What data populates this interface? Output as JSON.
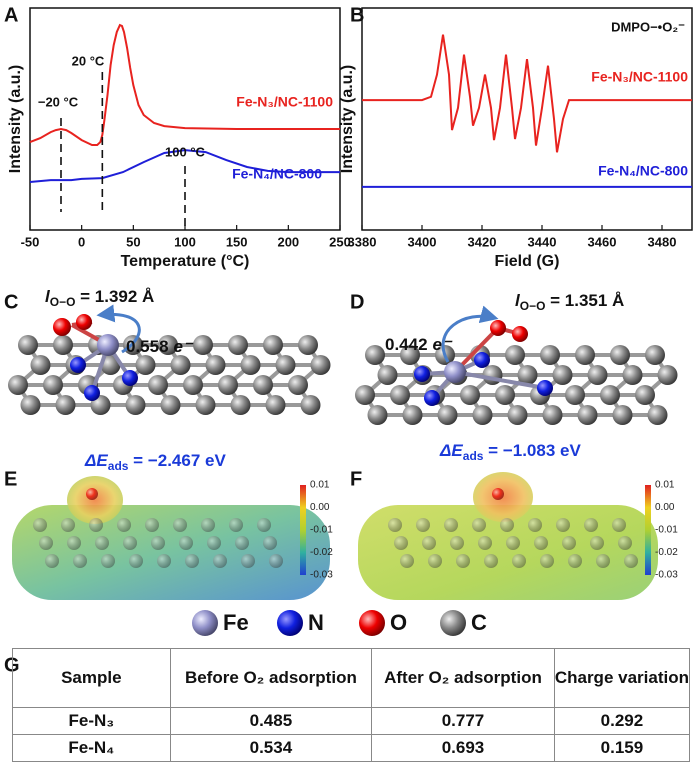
{
  "panel_labels": [
    "A",
    "B",
    "C",
    "D",
    "E",
    "F",
    "G"
  ],
  "chart_data": [
    {
      "type": "line",
      "y_label": "Intensity (a.u.)",
      "x_label": "Temperature (°C)",
      "xlim": [
        -50,
        250
      ],
      "xticks": [
        -50,
        0,
        50,
        100,
        150,
        200,
        250
      ],
      "ylim": [
        0,
        100
      ],
      "series": [
        {
          "name": "Fe-N₃/NC-1100",
          "color": "#e8231f",
          "x": [
            -50,
            -40,
            -30,
            -25,
            -20,
            -15,
            -10,
            0,
            10,
            15,
            18,
            20,
            22,
            25,
            28,
            31,
            34,
            37,
            39,
            41,
            44,
            47,
            50,
            55,
            60,
            70,
            80,
            100,
            150,
            200,
            250
          ],
          "values": [
            39.6,
            41.4,
            44.1,
            45,
            45.5,
            45,
            43.7,
            40.5,
            38.3,
            38.3,
            39.6,
            42.8,
            49.5,
            60.8,
            74.3,
            83.3,
            89.2,
            92.3,
            91.9,
            89.2,
            82,
            73,
            65.3,
            56.3,
            51.8,
            48.2,
            46.8,
            45.9,
            45.5,
            45.5,
            45.5
          ]
        },
        {
          "name": "Fe-N₄/NC-800",
          "color": "#1f1fd8",
          "x": [
            -50,
            -30,
            -10,
            0,
            20,
            40,
            60,
            80,
            100,
            120,
            140,
            160,
            180,
            200,
            250
          ],
          "values": [
            21.6,
            22.5,
            22.5,
            23,
            23.4,
            26.1,
            30.6,
            34.7,
            36,
            35.1,
            31.5,
            28.4,
            26.6,
            26.1,
            26.1
          ]
        }
      ],
      "annotations": [
        {
          "text": "−20 °C",
          "x": -20
        },
        {
          "text": "20 °C",
          "x": 20
        },
        {
          "text": "100 °C",
          "x": 100
        }
      ]
    },
    {
      "type": "line",
      "y_label": "Intensity (a.u.)",
      "x_label": "Field (G)",
      "xlim": [
        3380,
        3490
      ],
      "xticks": [
        3380,
        3400,
        3420,
        3440,
        3460,
        3480
      ],
      "ylim": [
        0,
        100
      ],
      "annotation": "DMPO−•O₂⁻",
      "series": [
        {
          "name": "Fe-N₃/NC-1100",
          "color": "#e8231f",
          "x": [
            3380,
            3400,
            3403,
            3405,
            3407,
            3409,
            3410,
            3412,
            3414,
            3416,
            3417,
            3419,
            3421,
            3423,
            3424,
            3426,
            3428,
            3430,
            3431,
            3433,
            3435,
            3437,
            3438,
            3440,
            3442,
            3444,
            3445,
            3447,
            3449,
            3490
          ],
          "values": [
            58.5,
            58.5,
            60,
            70,
            88,
            70,
            45,
            55,
            79,
            60,
            47,
            55,
            70,
            55,
            40.5,
            55,
            79,
            55,
            41,
            55,
            77,
            55,
            38,
            55,
            74,
            50,
            35,
            50,
            58.5,
            58.5
          ]
        },
        {
          "name": "Fe-N₄/NC-800",
          "color": "#1f1fd8",
          "x": [
            3380,
            3490
          ],
          "values": [
            19.4,
            19.4
          ]
        }
      ]
    }
  ],
  "structures": [
    {
      "bond_symbol": "l",
      "bond_subscript": "O−O",
      "bond_text": " = 1.392 Å",
      "charge": "0.558",
      "charge_unit": "e⁻",
      "energy_symbol": "ΔE",
      "energy_subscript": "ads",
      "energy_text": " = −2.467 eV"
    },
    {
      "bond_symbol": "l",
      "bond_subscript": "O−O",
      "bond_text": " = 1.351 Å",
      "charge": "0.442",
      "charge_unit": "e⁻",
      "energy_symbol": "ΔE",
      "energy_subscript": "ads",
      "energy_text": " = −1.083 eV"
    }
  ],
  "colorbars": [
    {
      "ticks": [
        "0.01",
        "0.00",
        "-0.01",
        "-0.02",
        "-0.03"
      ]
    },
    {
      "ticks": [
        "0.01",
        "0.00",
        "-0.01",
        "-0.02",
        "-0.03"
      ]
    }
  ],
  "atom_legend": [
    "Fe",
    "N",
    "O",
    "C"
  ],
  "table": {
    "header": [
      "Sample",
      "Before O₂ adsorption",
      "After O₂ adsorption",
      "Charge variation"
    ],
    "rows": [
      [
        "Fe-N₃",
        "0.485",
        "0.777",
        "0.292"
      ],
      [
        "Fe-N₄",
        "0.534",
        "0.693",
        "0.159"
      ]
    ]
  }
}
